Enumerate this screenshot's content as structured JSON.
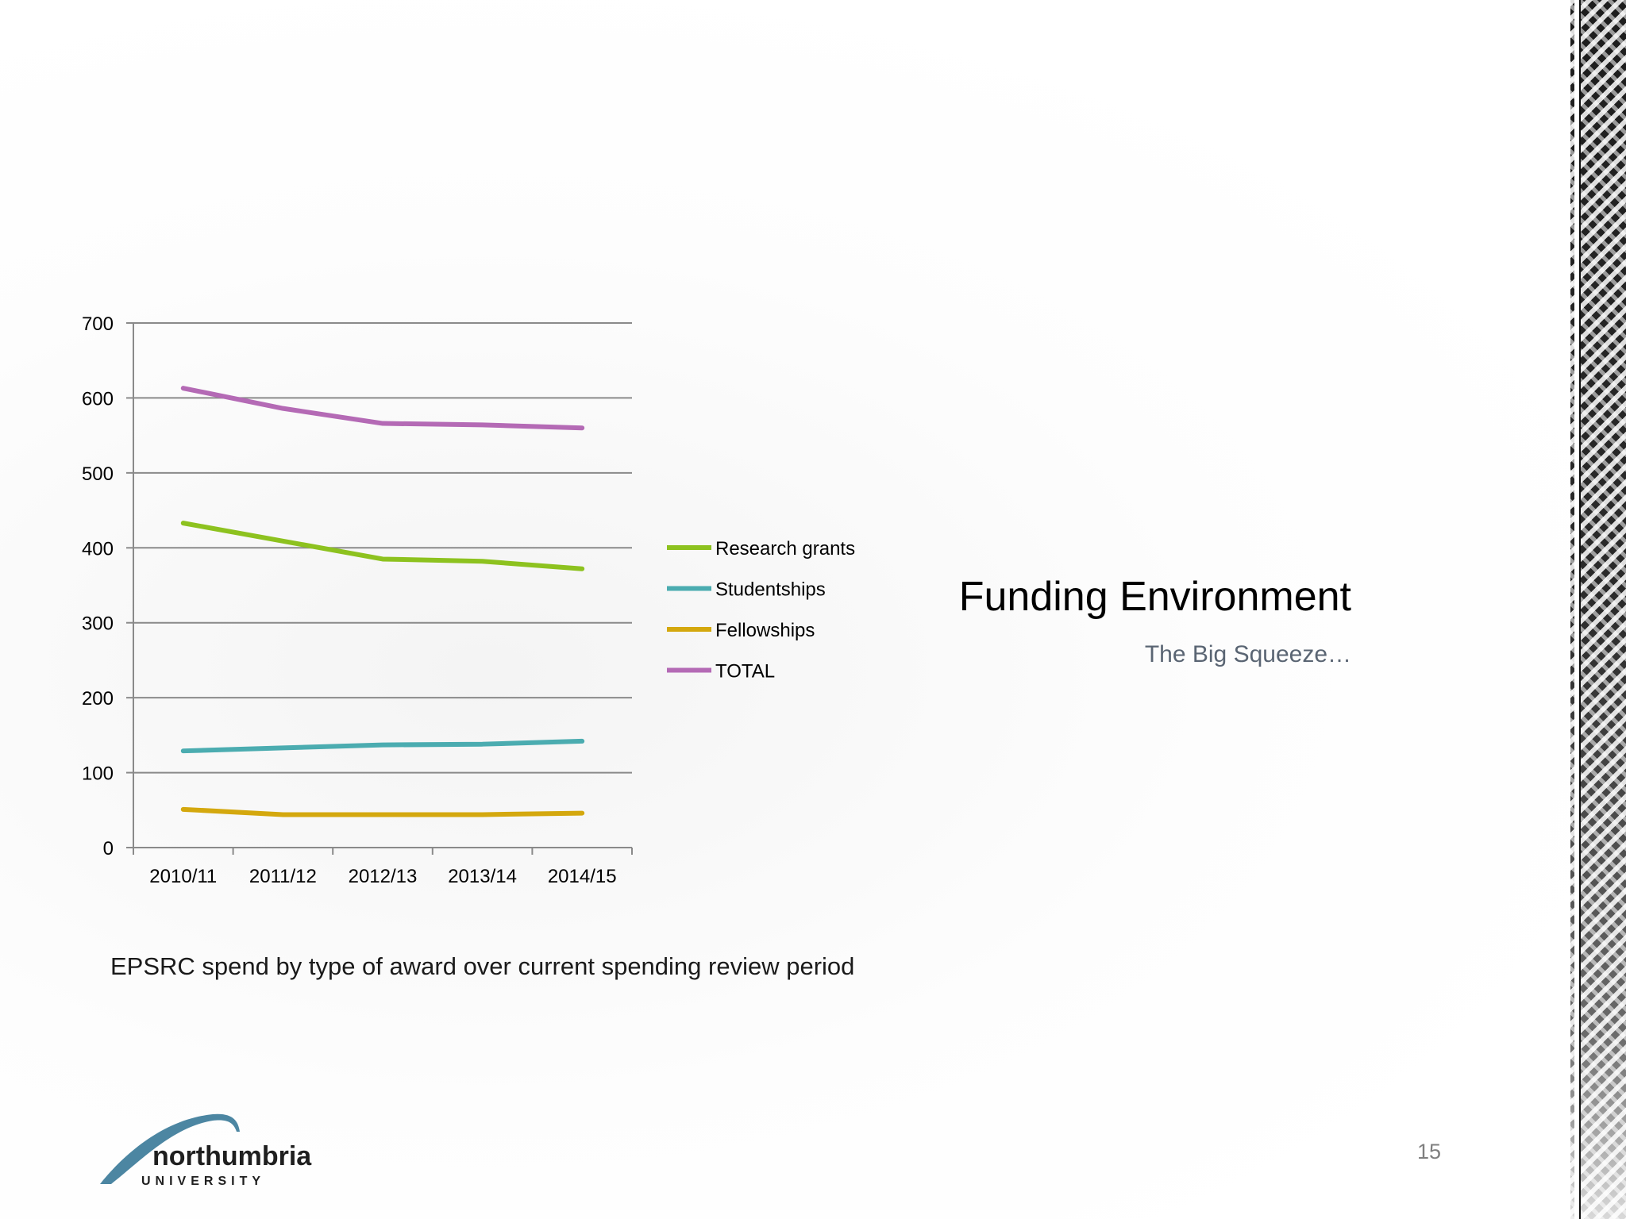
{
  "slide": {
    "title": "Funding Environment",
    "subtitle": "The Big Squeeze…",
    "caption": "EPSRC spend by type of award over current spending review period",
    "page_number": "15",
    "logo": {
      "line1": "northumbria",
      "line2": "UNIVERSITY"
    }
  },
  "chart_data": {
    "type": "line",
    "categories": [
      "2010/11",
      "2011/12",
      "2012/13",
      "2013/14",
      "2014/15"
    ],
    "series": [
      {
        "name": "Research grants",
        "color": "#8DC21F",
        "values": [
          433,
          409,
          385,
          382,
          372
        ]
      },
      {
        "name": "Studentships",
        "color": "#4BACB0",
        "values": [
          129,
          133,
          137,
          138,
          142
        ]
      },
      {
        "name": "Fellowships",
        "color": "#D4A80E",
        "values": [
          51,
          44,
          44,
          44,
          46
        ]
      },
      {
        "name": "TOTAL",
        "color": "#B46AB5",
        "values": [
          613,
          586,
          566,
          564,
          560
        ]
      }
    ],
    "ylim": [
      0,
      700
    ],
    "yticks": [
      0,
      100,
      200,
      300,
      400,
      500,
      600,
      700
    ],
    "grid": true,
    "legend": "right"
  }
}
